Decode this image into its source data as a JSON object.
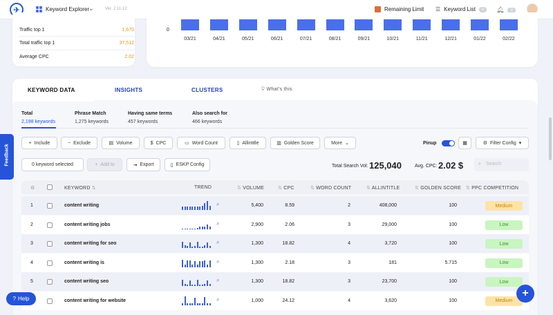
{
  "topbar": {
    "app_name": "Keyword Explorer",
    "version": "Ver. 2.11.12",
    "remaining_limit": "Remaining Limit",
    "keyword_list": "Keyword List",
    "keyword_list_count": "0",
    "notifications_count": "3"
  },
  "stats": [
    {
      "label": "Traffic top 1",
      "value": "1,670"
    },
    {
      "label": "Total traffic top 1",
      "value": "37,512"
    },
    {
      "label": "Average CPC",
      "value": "2.02"
    }
  ],
  "monthly_chart": {
    "y_tick": "0",
    "months": [
      "03/21",
      "04/21",
      "05/21",
      "06/21",
      "07/21",
      "08/21",
      "09/21",
      "10/21",
      "11/21",
      "12/21",
      "01/22",
      "02/22"
    ]
  },
  "tabs": [
    {
      "label": "KEYWORD DATA"
    },
    {
      "label": "INSIGHTS"
    },
    {
      "label": "CLUSTERS"
    },
    {
      "label": "What's this"
    }
  ],
  "subtabs": [
    {
      "title": "Total",
      "count": "2,198 keywords"
    },
    {
      "title": "Phrase Match",
      "count": "1,275 keywords"
    },
    {
      "title": "Having same terms",
      "count": "457 keywords"
    },
    {
      "title": "Also search for",
      "count": "466 keywords"
    }
  ],
  "filters": [
    "Include",
    "Exclude",
    "Volume",
    "CPC",
    "Word Count",
    "Allintitle",
    "Golden Score",
    "More"
  ],
  "pinup_label": "Pinup",
  "filter_config": "Filter Config",
  "selection": {
    "selected_text": "0 keyword selected",
    "add_to": "Add to",
    "export": "Export",
    "eskp_config": "ESKP Config"
  },
  "summary": {
    "total_label": "Total Search Vol:",
    "total_value": "125,040",
    "cpc_label": "Avg. CPC:",
    "cpc_value": "2.02 $"
  },
  "search_placeholder": "Search",
  "table": {
    "headers": [
      "KEYWORD",
      "TREND",
      "VOLUME",
      "CPC",
      "WORD COUNT",
      "ALLINTITLE",
      "GOLDEN SCORE",
      "PPC COMPETITION"
    ],
    "rows": [
      {
        "num": "1",
        "keyword": "content writing",
        "trend": [
          5,
          5,
          5,
          5,
          5,
          5,
          5,
          5,
          6,
          10,
          13,
          6
        ],
        "volume": "5,400",
        "cpc": "8.59",
        "words": "2",
        "allintitle": "408,000",
        "golden": "100",
        "ppc": "Medium"
      },
      {
        "num": "2",
        "keyword": "content writing jobs",
        "trend": [
          1,
          1,
          1,
          1,
          1,
          1,
          2,
          4,
          4,
          4,
          7,
          4
        ],
        "volume": "2,900",
        "cpc": "2.06",
        "words": "3",
        "allintitle": "29,000",
        "golden": "100",
        "ppc": "Low"
      },
      {
        "num": "3",
        "keyword": "content writing for seo",
        "trend": [
          9,
          4,
          3,
          8,
          2,
          3,
          9,
          2,
          2,
          4,
          8,
          3
        ],
        "volume": "1,300",
        "cpc": "18.82",
        "words": "4",
        "allintitle": "3,720",
        "golden": "100",
        "ppc": "Low"
      },
      {
        "num": "4",
        "keyword": "content writing is",
        "trend": [
          11,
          4,
          10,
          10,
          4,
          9,
          4,
          9,
          9,
          10,
          4,
          10
        ],
        "volume": "1,300",
        "cpc": "2.18",
        "words": "3",
        "allintitle": "181",
        "golden": "5.715",
        "ppc": "Low"
      },
      {
        "num": "5",
        "keyword": "content writing seo",
        "trend": [
          9,
          3,
          2,
          8,
          2,
          2,
          9,
          2,
          2,
          3,
          8,
          3
        ],
        "volume": "1,300",
        "cpc": "18.82",
        "words": "3",
        "allintitle": "23,700",
        "golden": "100",
        "ppc": "Low"
      },
      {
        "num": "6",
        "keyword": "content writing for website",
        "trend": [
          3,
          13,
          3,
          3,
          3,
          11,
          3,
          3,
          3,
          12,
          3,
          3
        ],
        "volume": "1,000",
        "cpc": "24.12",
        "words": "4",
        "allintitle": "3,620",
        "golden": "100",
        "ppc": "Medium"
      }
    ]
  },
  "help_label": "Help",
  "feedback_label": "Feedback",
  "colors": {
    "accent": "#2554d8",
    "bar": "#4a6fe8",
    "orange": "#e8961a",
    "medium_bg": "#fde3a6",
    "low_bg": "#c9f5c0"
  }
}
